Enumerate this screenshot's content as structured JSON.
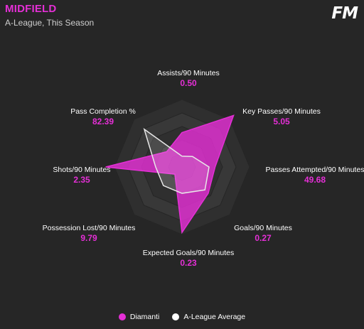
{
  "header": {
    "title": "MIDFIELD",
    "subtitle": "A-League, This Season",
    "logo": "FM"
  },
  "colors": {
    "player": "#e52fd6",
    "average": "#e8e8e8",
    "background": "#262626"
  },
  "chart_data": {
    "type": "radar",
    "title": "MIDFIELD",
    "subtitle": "A-League, This Season",
    "axes": [
      {
        "label": "Assists/90 Minutes",
        "value": "0.50"
      },
      {
        "label": "Key Passes/90 Minutes",
        "value": "5.05"
      },
      {
        "label": "Passes Attempted/90 Minutes",
        "value": "49.68"
      },
      {
        "label": "Goals/90 Minutes",
        "value": "0.27"
      },
      {
        "label": "Expected Goals/90 Minutes",
        "value": "0.23"
      },
      {
        "label": "Possession Lost/90 Minutes",
        "value": "9.79"
      },
      {
        "label": "Shots/90 Minutes",
        "value": "2.35"
      },
      {
        "label": "Pass Completion %",
        "value": "82.39"
      }
    ],
    "rings": 5,
    "series": [
      {
        "name": "Diamanti",
        "normalized": [
          0.51,
          1.08,
          0.49,
          0.55,
          0.97,
          0.15,
          1.13,
          0.32
        ]
      },
      {
        "name": "A-League Average",
        "normalized": [
          0.16,
          0.22,
          0.4,
          0.48,
          0.39,
          0.39,
          0.39,
          0.79
        ]
      }
    ],
    "legend": "bottom-center"
  }
}
